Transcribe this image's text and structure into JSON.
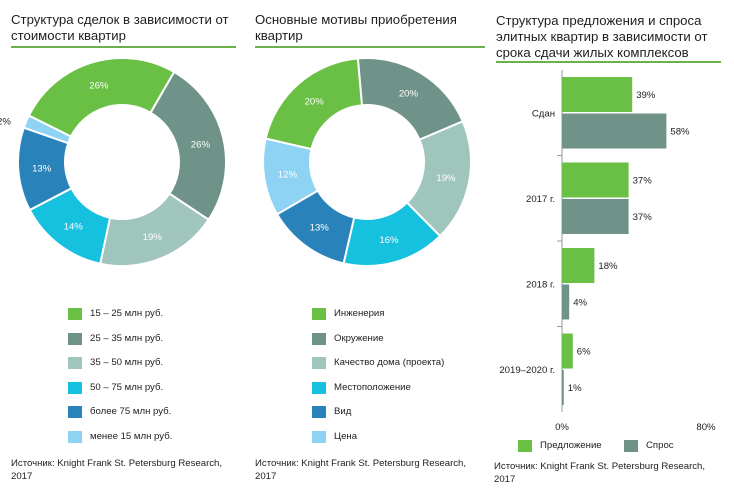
{
  "source_text": "Источник: Knight Frank St. Petersburg Research, 2017",
  "chart_data": [
    {
      "type": "pie",
      "donut": true,
      "title": "Структура сделок в зависимости от стоимости квартир",
      "slices": [
        {
          "label": "15 – 25 млн руб.",
          "value": 26,
          "label_text": "26%",
          "color": "#6abf45"
        },
        {
          "label": "25 – 35 млн руб.",
          "value": 26,
          "label_text": "26%",
          "color": "#6f9389"
        },
        {
          "label": "35 – 50 млн руб.",
          "value": 19,
          "label_text": "19%",
          "color": "#9fc5bd"
        },
        {
          "label": "50 – 75 млн руб.",
          "value": 14,
          "label_text": "14%",
          "color": "#16c0df"
        },
        {
          "label": "более 75 млн руб.",
          "value": 13,
          "label_text": "13%",
          "color": "#2a82ba"
        },
        {
          "label": "менее 15 млн руб.",
          "value": 2,
          "label_text": "2%",
          "color": "#8fd3f4"
        }
      ]
    },
    {
      "type": "pie",
      "donut": true,
      "title": "Основные мотивы приобретения квартир",
      "slices": [
        {
          "label": "Инженерия",
          "value": 20,
          "label_text": "20%",
          "color": "#6abf45"
        },
        {
          "label": "Окружение",
          "value": 20,
          "label_text": "20%",
          "color": "#6f9389"
        },
        {
          "label": "Качество дома (проекта)",
          "value": 19,
          "label_text": "19%",
          "color": "#9fc5bd"
        },
        {
          "label": "Местоположение",
          "value": 16,
          "label_text": "16%",
          "color": "#16c0df"
        },
        {
          "label": "Вид",
          "value": 13,
          "label_text": "13%",
          "color": "#2a82ba"
        },
        {
          "label": "Цена",
          "value": 12,
          "label_text": "12%",
          "color": "#8fd3f4"
        }
      ]
    },
    {
      "type": "bar",
      "orientation": "horizontal",
      "title": "Структура предложения и спроса элитных квартир в зависимости от срока сдачи жилых комплексов",
      "categories": [
        "Сдан",
        "2017 г.",
        "2018 г.",
        "2019–2020 г."
      ],
      "series": [
        {
          "name": "Предложение",
          "values": [
            39,
            37,
            18,
            6
          ],
          "labels": [
            "39%",
            "37%",
            "18%",
            "6%"
          ],
          "color": "#6abf45"
        },
        {
          "name": "Спрос",
          "values": [
            58,
            37,
            4,
            1
          ],
          "labels": [
            "58%",
            "37%",
            "4%",
            "1%"
          ],
          "color": "#6f9389"
        }
      ],
      "xlim": [
        0,
        80
      ],
      "xticks": [
        "0%",
        "80%"
      ]
    }
  ]
}
